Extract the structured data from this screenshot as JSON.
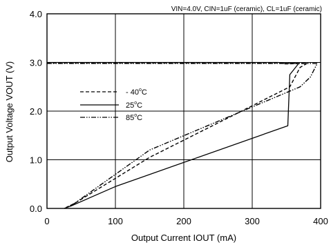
{
  "chart_data": {
    "type": "line",
    "subtitle": "VIN=4.0V, CIN=1uF (ceramic), CL=1uF (ceramic)",
    "xlabel": "Output Current IOUT (mA)",
    "ylabel": "Output Voltage VOUT (V)",
    "xlim": [
      0,
      400
    ],
    "ylim": [
      0,
      4.0
    ],
    "x_ticks": [
      "0",
      "100",
      "200",
      "300",
      "400"
    ],
    "y_ticks": [
      "0.0",
      "1.0",
      "2.0",
      "3.0",
      "4.0"
    ],
    "grid": true,
    "legend_position": "center-left",
    "series": [
      {
        "legend_value": "- 40",
        "legend_unit": "C",
        "style": "dashed",
        "points": [
          [
            0,
            2.99
          ],
          [
            340,
            2.99
          ],
          [
            348,
            2.97
          ],
          [
            380,
            2.98
          ],
          [
            370,
            2.9
          ],
          [
            355,
            2.5
          ],
          [
            150,
            1.05
          ],
          [
            40,
            0.1
          ],
          [
            28,
            0.02
          ]
        ]
      },
      {
        "legend_value": "25",
        "legend_unit": "C",
        "style": "solid",
        "points": [
          [
            0,
            3.0
          ],
          [
            338,
            3.0
          ],
          [
            345,
            2.98
          ],
          [
            368,
            2.98
          ],
          [
            355,
            2.75
          ],
          [
            352,
            1.7
          ],
          [
            100,
            0.45
          ],
          [
            35,
            0.05
          ],
          [
            25,
            0.0
          ]
        ]
      },
      {
        "legend_value": "85",
        "legend_unit": "C",
        "style": "dash-dot-dot",
        "points": [
          [
            0,
            2.98
          ],
          [
            350,
            2.98
          ],
          [
            395,
            2.98
          ],
          [
            385,
            2.7
          ],
          [
            370,
            2.5
          ],
          [
            150,
            1.2
          ],
          [
            40,
            0.1
          ],
          [
            28,
            0.02
          ]
        ]
      }
    ]
  }
}
